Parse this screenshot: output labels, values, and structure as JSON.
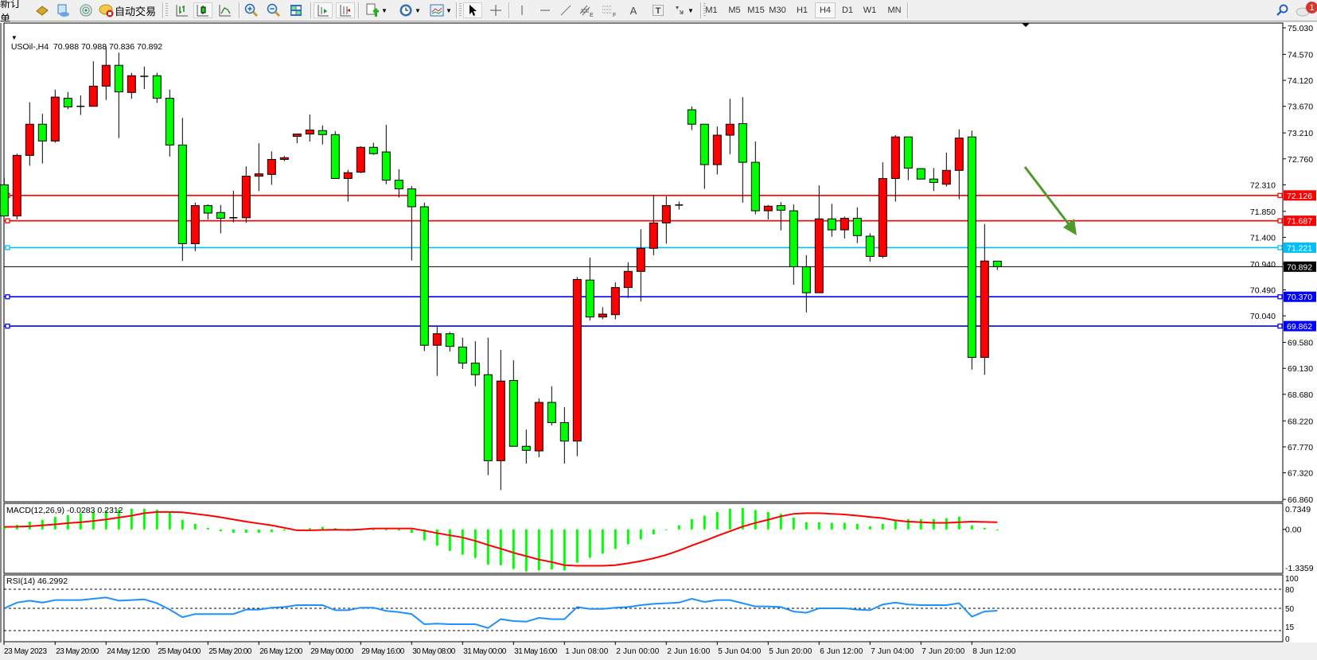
{
  "toolbar": {
    "new_order": "新订单",
    "auto_trading": "自动交易",
    "timeframes": [
      "M1",
      "M5",
      "M15",
      "M30",
      "H1",
      "H4",
      "D1",
      "W1",
      "MN"
    ],
    "active_timeframe": "H4",
    "notification_count": "1",
    "drawing_tool_letters": {
      "channel": "E",
      "fibo": "F",
      "text": "A",
      "label": "T"
    }
  },
  "chart_header": {
    "text": "USOil-,H4  70.988 70.988 70.836 70.892"
  },
  "price_axis": {
    "ticks": [
      "75.030",
      "74.570",
      "74.120",
      "73.670",
      "73.210",
      "72.760",
      "72.310",
      "71.850",
      "71.400",
      "70.940",
      "70.490",
      "70.040",
      "69.580",
      "69.130",
      "68.680",
      "68.220",
      "67.770",
      "67.320",
      "66.860"
    ]
  },
  "time_axis": {
    "labels": [
      "23 May 2023",
      "23 May 20:00",
      "24 May 12:00",
      "25 May 04:00",
      "25 May 20:00",
      "26 May 12:00",
      "29 May 00:00",
      "29 May 16:00",
      "30 May 08:00",
      "31 May 00:00",
      "31 May 16:00",
      "1 Jun 08:00",
      "2 Jun 00:00",
      "2 Jun 16:00",
      "5 Jun 04:00",
      "5 Jun 20:00",
      "6 Jun 12:00",
      "7 Jun 04:00",
      "7 Jun 20:00",
      "8 Jun 12:00"
    ]
  },
  "horizontal_lines": [
    {
      "price": "72.126",
      "color": "#ff0000"
    },
    {
      "price": "71.687",
      "color": "#ff0000"
    },
    {
      "price": "71.221",
      "color": "#00bfff"
    },
    {
      "price": "70.370",
      "color": "#0000ff"
    },
    {
      "price": "69.862",
      "color": "#0000ff"
    }
  ],
  "current_price": {
    "value": "70.892",
    "color": "#000000"
  },
  "annotation_arrow": {
    "color": "#4e9a2c",
    "direction": "down-right"
  },
  "macd": {
    "label": "MACD(12,26,9) -0.0283 0.2312",
    "axis": [
      "0.7349",
      "0.00",
      "-1.3359"
    ],
    "histogram_color": "#00ff00",
    "signal_color": "#ff0000"
  },
  "rsi": {
    "label": "RSI(14) 46.2992",
    "axis": [
      "100",
      "80",
      "50",
      "15",
      "0"
    ],
    "levels": [
      80,
      50,
      15
    ],
    "color": "#1e90ff"
  },
  "colors": {
    "bull_candle": "#ff0000",
    "bear_candle": "#00ff00",
    "background": "#ffffff",
    "foreground": "#000000"
  },
  "chart_data": {
    "type": "candlestick",
    "symbol": "USOil-",
    "timeframe": "H4",
    "ylim": [
      66.86,
      75.03
    ],
    "grid": false,
    "ohlc": [
      [
        72.31,
        72.43,
        71.77,
        71.77
      ],
      [
        71.77,
        72.85,
        71.71,
        72.82
      ],
      [
        72.82,
        73.74,
        72.64,
        73.36
      ],
      [
        73.36,
        73.54,
        72.68,
        73.07
      ],
      [
        73.07,
        73.96,
        73.04,
        73.83
      ],
      [
        73.81,
        73.92,
        73.62,
        73.66
      ],
      [
        73.67,
        73.86,
        73.52,
        73.67
      ],
      [
        73.67,
        74.45,
        73.67,
        74.02
      ],
      [
        74.02,
        74.71,
        73.78,
        74.38
      ],
      [
        74.38,
        74.6,
        73.12,
        73.92
      ],
      [
        73.91,
        74.25,
        73.8,
        74.2
      ],
      [
        74.19,
        74.36,
        73.97,
        74.19
      ],
      [
        74.2,
        74.25,
        73.73,
        73.81
      ],
      [
        73.81,
        73.96,
        72.8,
        73.0
      ],
      [
        73.0,
        73.47,
        70.99,
        71.29
      ],
      [
        71.29,
        72.0,
        71.16,
        71.95
      ],
      [
        71.95,
        71.97,
        71.71,
        71.82
      ],
      [
        71.83,
        71.96,
        71.47,
        71.73
      ],
      [
        71.74,
        72.21,
        71.66,
        71.74
      ],
      [
        71.74,
        72.63,
        71.65,
        72.46
      ],
      [
        72.46,
        73.03,
        72.2,
        72.5
      ],
      [
        72.49,
        72.89,
        72.31,
        72.75
      ],
      [
        72.75,
        72.81,
        72.72,
        72.78
      ],
      [
        73.15,
        73.2,
        73.03,
        73.19
      ],
      [
        73.19,
        73.53,
        73.06,
        73.26
      ],
      [
        73.25,
        73.34,
        73.01,
        73.18
      ],
      [
        73.18,
        73.24,
        72.42,
        72.42
      ],
      [
        72.42,
        72.57,
        72.02,
        72.52
      ],
      [
        72.53,
        72.98,
        72.51,
        72.96
      ],
      [
        72.96,
        73.04,
        72.83,
        72.85
      ],
      [
        72.88,
        73.35,
        72.32,
        72.39
      ],
      [
        72.39,
        72.58,
        72.09,
        72.24
      ],
      [
        72.24,
        72.29,
        71.0,
        71.93
      ],
      [
        71.93,
        72.0,
        69.43,
        69.53
      ],
      [
        69.53,
        69.85,
        69.0,
        69.73
      ],
      [
        69.73,
        69.76,
        69.42,
        69.51
      ],
      [
        69.5,
        69.66,
        69.12,
        69.22
      ],
      [
        69.22,
        69.6,
        68.82,
        69.02
      ],
      [
        69.02,
        69.66,
        67.28,
        67.53
      ],
      [
        67.53,
        69.45,
        67.02,
        68.91
      ],
      [
        68.92,
        69.27,
        67.78,
        67.78
      ],
      [
        67.78,
        68.07,
        67.48,
        67.71
      ],
      [
        67.7,
        68.61,
        67.59,
        68.54
      ],
      [
        68.54,
        68.82,
        68.14,
        68.19
      ],
      [
        68.19,
        68.46,
        67.48,
        67.87
      ],
      [
        67.87,
        70.71,
        67.61,
        70.67
      ],
      [
        70.66,
        71.05,
        69.96,
        70.02
      ],
      [
        70.02,
        70.19,
        69.98,
        70.07
      ],
      [
        70.06,
        70.62,
        69.98,
        70.53
      ],
      [
        70.53,
        70.97,
        70.35,
        70.81
      ],
      [
        70.81,
        71.54,
        70.29,
        71.21
      ],
      [
        71.21,
        72.13,
        71.09,
        71.65
      ],
      [
        71.65,
        72.11,
        71.29,
        71.95
      ],
      [
        71.96,
        72.02,
        71.88,
        71.96
      ],
      [
        73.61,
        73.67,
        73.26,
        73.36
      ],
      [
        73.36,
        73.36,
        72.24,
        72.66
      ],
      [
        72.66,
        73.32,
        72.49,
        73.17
      ],
      [
        73.17,
        73.8,
        72.84,
        73.36
      ],
      [
        73.37,
        73.83,
        72.0,
        72.7
      ],
      [
        72.7,
        73.06,
        71.8,
        71.86
      ],
      [
        71.86,
        71.96,
        71.71,
        71.94
      ],
      [
        71.95,
        72.01,
        71.52,
        71.87
      ],
      [
        71.86,
        71.97,
        70.58,
        70.89
      ],
      [
        70.89,
        71.09,
        70.1,
        70.44
      ],
      [
        70.44,
        72.3,
        70.44,
        71.72
      ],
      [
        71.72,
        71.98,
        71.41,
        71.53
      ],
      [
        71.53,
        71.76,
        71.38,
        71.73
      ],
      [
        71.73,
        71.92,
        71.3,
        71.43
      ],
      [
        71.42,
        71.47,
        70.98,
        71.07
      ],
      [
        71.07,
        72.7,
        71.04,
        72.42
      ],
      [
        72.42,
        73.17,
        72.02,
        73.14
      ],
      [
        73.14,
        73.14,
        72.39,
        72.6
      ],
      [
        72.59,
        72.6,
        72.41,
        72.41
      ],
      [
        72.41,
        72.6,
        72.2,
        72.35
      ],
      [
        72.32,
        72.87,
        72.28,
        72.56
      ],
      [
        72.56,
        73.27,
        72.06,
        73.12
      ],
      [
        73.14,
        73.25,
        69.11,
        69.32
      ],
      [
        69.32,
        71.63,
        69.02,
        70.99
      ],
      [
        70.988,
        70.988,
        70.836,
        70.892
      ]
    ],
    "macd_main": [
      0.08,
      0.15,
      0.25,
      0.31,
      0.4,
      0.46,
      0.52,
      0.57,
      0.61,
      0.64,
      0.67,
      0.67,
      0.63,
      0.54,
      0.31,
      0.18,
      0.05,
      -0.06,
      -0.11,
      -0.11,
      -0.11,
      -0.09,
      -0.04,
      -0.01,
      0.04,
      0.08,
      0.04,
      0.02,
      0.0,
      0.0,
      -0.03,
      -0.04,
      -0.11,
      -0.35,
      -0.52,
      -0.69,
      -0.81,
      -0.92,
      -1.13,
      -1.15,
      -1.27,
      -1.35,
      -1.32,
      -1.29,
      -1.32,
      -1.07,
      -0.91,
      -0.78,
      -0.63,
      -0.48,
      -0.32,
      -0.16,
      -0.02,
      0.13,
      0.33,
      0.44,
      0.56,
      0.67,
      0.69,
      0.62,
      0.56,
      0.5,
      0.38,
      0.23,
      0.23,
      0.21,
      0.21,
      0.18,
      0.1,
      0.18,
      0.28,
      0.33,
      0.33,
      0.33,
      0.36,
      0.41,
      0.13,
      0.05,
      -0.0283
    ],
    "macd_signal": [
      0.08,
      0.085,
      0.1,
      0.13,
      0.16,
      0.2,
      0.23,
      0.27,
      0.32,
      0.38,
      0.44,
      0.52,
      0.56,
      0.56,
      0.55,
      0.5,
      0.45,
      0.39,
      0.32,
      0.25,
      0.19,
      0.13,
      0.05,
      -0.03,
      -0.03,
      -0.02,
      -0.01,
      -0.02,
      0.0,
      0.03,
      0.03,
      0.03,
      0.03,
      -0.04,
      -0.12,
      -0.19,
      -0.26,
      -0.37,
      -0.5,
      -0.62,
      -0.75,
      -0.86,
      -0.97,
      -1.05,
      -1.15,
      -1.17,
      -1.17,
      -1.17,
      -1.15,
      -1.09,
      -1.02,
      -0.93,
      -0.82,
      -0.68,
      -0.52,
      -0.37,
      -0.21,
      -0.06,
      0.09,
      0.21,
      0.31,
      0.42,
      0.5,
      0.52,
      0.52,
      0.5,
      0.48,
      0.44,
      0.4,
      0.36,
      0.29,
      0.25,
      0.23,
      0.21,
      0.21,
      0.23,
      0.25,
      0.24,
      0.2312
    ],
    "macd_range": [
      -1.3359,
      0.7349
    ],
    "rsi": [
      50,
      59,
      62,
      59,
      63,
      63,
      63,
      65,
      67,
      62,
      63,
      64,
      58,
      48,
      36,
      41,
      41,
      41,
      41,
      48,
      48,
      51,
      52,
      55,
      55,
      55,
      47,
      47,
      51,
      51,
      46,
      44,
      41,
      25,
      26,
      25,
      25,
      25,
      19,
      33,
      30,
      29,
      35,
      33,
      33,
      52,
      49,
      49,
      51,
      52,
      55,
      57,
      58,
      59,
      65,
      60,
      63,
      63,
      58,
      53,
      53,
      52,
      45,
      43,
      50,
      50,
      50,
      48,
      47,
      56,
      59,
      56,
      55,
      55,
      55,
      58,
      37,
      45,
      46.2992
    ],
    "rsi_range": [
      0,
      100
    ]
  }
}
